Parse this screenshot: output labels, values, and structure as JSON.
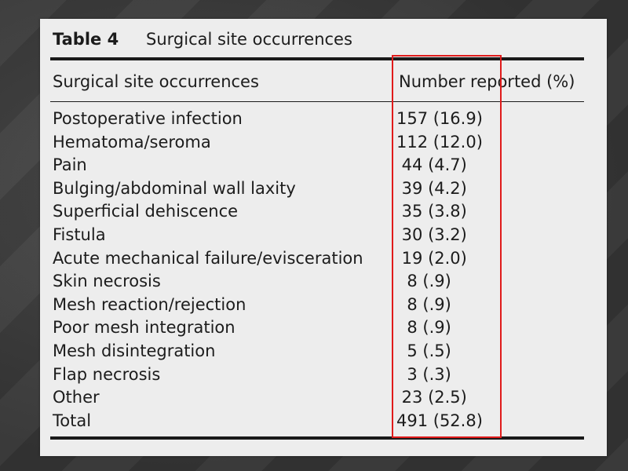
{
  "table": {
    "label": "Table 4",
    "title": "Surgical site occurrences",
    "header": {
      "col1": "Surgical site occurrences",
      "col2": "Number reported (%)"
    },
    "rows": [
      {
        "label": "Postoperative infection",
        "value": "157 (16.9)"
      },
      {
        "label": "Hematoma/seroma",
        "value": "112 (12.0)"
      },
      {
        "label": "Pain",
        "value": " 44 (4.7)"
      },
      {
        "label": "Bulging/abdominal wall laxity",
        "value": " 39 (4.2)"
      },
      {
        "label": "Superficial dehiscence",
        "value": " 35 (3.8)"
      },
      {
        "label": "Fistula",
        "value": " 30 (3.2)"
      },
      {
        "label": "Acute mechanical failure/evisceration",
        "value": " 19 (2.0)"
      },
      {
        "label": "Skin necrosis",
        "value": "  8 (.9)"
      },
      {
        "label": "Mesh reaction/rejection",
        "value": "  8 (.9)"
      },
      {
        "label": "Poor mesh integration",
        "value": "  8 (.9)"
      },
      {
        "label": "Mesh disintegration",
        "value": "  5 (.5)"
      },
      {
        "label": "Flap necrosis",
        "value": "  3 (.3)"
      },
      {
        "label": "Other",
        "value": " 23 (2.5)"
      },
      {
        "label": "Total",
        "value": "491 (52.8)"
      }
    ]
  },
  "highlight": {
    "color": "#e01b1b"
  }
}
